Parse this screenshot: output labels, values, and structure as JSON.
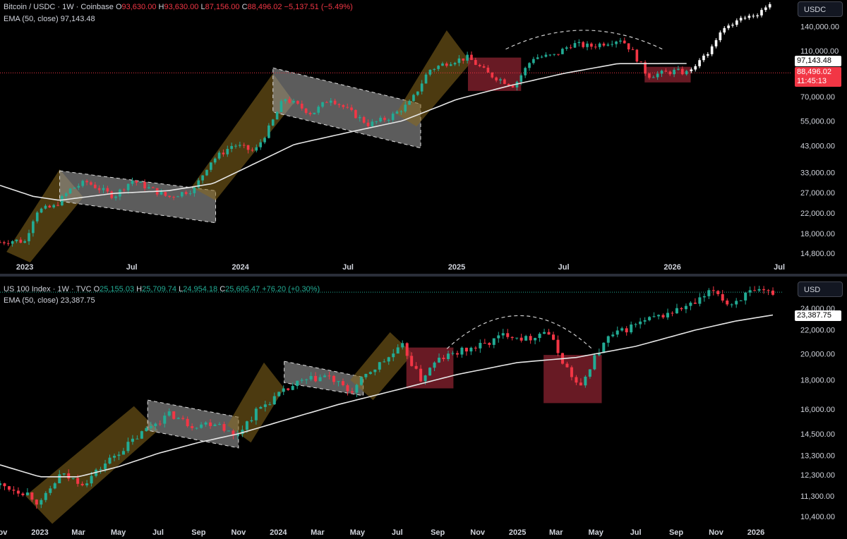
{
  "colors": {
    "up": "#22ab94",
    "down": "#f23645",
    "ema": "#e6e6e6",
    "projection": "#ffffff",
    "channel_up": "#8a6a1e",
    "channel_down": "#9a9a9a",
    "box": "#8b2330"
  },
  "top_pane": {
    "legend": {
      "symbol": "Bitcoin / USDC · 1W · Coinbase",
      "o_label": "O",
      "o_value": "93,630.00",
      "h_label": "H",
      "h_value": "93,630.00",
      "l_label": "L",
      "l_value": "87,156.00",
      "c_label": "C",
      "c_value": "88,496.02",
      "change": "−5,137.51 (−5.49%)",
      "ema": "EMA (50, close)",
      "ema_value": "97,143.48"
    },
    "currency": "USDC",
    "ema_tag": "97,143.48",
    "price_tag": "88,496.02",
    "countdown": "11:45:13"
  },
  "bottom_pane": {
    "legend": {
      "symbol": "US 100 Index · 1W · TVC",
      "o_label": "O",
      "o_value": "25,155.03",
      "h_label": "H",
      "h_value": "25,709.74",
      "l_label": "L",
      "l_value": "24,954.18",
      "c_label": "C",
      "c_value": "25,605.47",
      "change": "+76.20 (+0.30%)",
      "ema": "EMA (50, close)",
      "ema_value": "23,387.75"
    },
    "currency": "USD",
    "ema_tag": "23,387.75"
  },
  "chart_data": [
    {
      "type": "candlestick",
      "title": "Bitcoin / USDC · 1W · Coinbase",
      "y_scale": "log",
      "ylim": [
        13500,
        170000
      ],
      "y_ticks": [
        "140,000.00",
        "110,000.00",
        "70,000.00",
        "55,000.00",
        "43,000.00",
        "33,000.00",
        "27,000.00",
        "22,000.00",
        "18,000.00",
        "14,800.00"
      ],
      "x_range": [
        "2022-11-20",
        "2026-07-20"
      ],
      "x_ticks": [
        {
          "label": "2023",
          "date": "2023-01-01"
        },
        {
          "label": "Jul",
          "date": "2023-07-01"
        },
        {
          "label": "2024",
          "date": "2024-01-01"
        },
        {
          "label": "Jul",
          "date": "2024-07-01"
        },
        {
          "label": "2025",
          "date": "2025-01-01"
        },
        {
          "label": "Jul",
          "date": "2025-07-01"
        },
        {
          "label": "2026",
          "date": "2026-01-01"
        },
        {
          "label": "Jul",
          "date": "2026-07-01"
        }
      ],
      "series": [
        {
          "kind": "close_path",
          "anchors": [
            [
              "2022-11-20",
              16500
            ],
            [
              "2022-12-15",
              16800
            ],
            [
              "2023-01-01",
              16600
            ],
            [
              "2023-01-20",
              22500
            ],
            [
              "2023-02-20",
              23500
            ],
            [
              "2023-03-20",
              28000
            ],
            [
              "2023-04-15",
              30000
            ],
            [
              "2023-06-01",
              26000
            ],
            [
              "2023-07-01",
              30500
            ],
            [
              "2023-09-01",
              25800
            ],
            [
              "2023-10-15",
              28000
            ],
            [
              "2023-11-10",
              36500
            ],
            [
              "2023-12-20",
              43500
            ],
            [
              "2024-01-25",
              40500
            ],
            [
              "2024-02-20",
              52000
            ],
            [
              "2024-03-15",
              69000
            ],
            [
              "2024-05-01",
              59000
            ],
            [
              "2024-06-01",
              69000
            ],
            [
              "2024-08-05",
              53000
            ],
            [
              "2024-09-10",
              57000
            ],
            [
              "2024-10-15",
              66000
            ],
            [
              "2024-11-15",
              91000
            ],
            [
              "2024-12-20",
              99000
            ],
            [
              "2025-01-20",
              103000
            ],
            [
              "2025-02-25",
              87000
            ],
            [
              "2025-04-08",
              78000
            ],
            [
              "2025-05-10",
              103000
            ],
            [
              "2025-06-15",
              105000
            ],
            [
              "2025-07-15",
              118000
            ],
            [
              "2025-08-15",
              115000
            ],
            [
              "2025-10-06",
              124000
            ],
            [
              "2025-10-25",
              110000
            ],
            [
              "2025-11-20",
              86000
            ],
            [
              "2026-01-05",
              90000
            ],
            [
              "2026-01-26",
              88496
            ]
          ]
        },
        {
          "kind": "projection",
          "anchors": [
            [
              "2026-01-26",
              90000
            ],
            [
              "2026-02-20",
              100000
            ],
            [
              "2026-03-20",
              128000
            ],
            [
              "2026-04-20",
              150000
            ],
            [
              "2026-05-20",
              155000
            ],
            [
              "2026-06-15",
              172000
            ]
          ]
        },
        {
          "kind": "ema",
          "name": "EMA (50, close)",
          "anchors": [
            [
              "2022-11-20",
              29000
            ],
            [
              "2023-01-15",
              26000
            ],
            [
              "2023-03-01",
              25000
            ],
            [
              "2023-06-01",
              26800
            ],
            [
              "2023-09-01",
              27500
            ],
            [
              "2023-11-15",
              29500
            ],
            [
              "2024-01-15",
              35000
            ],
            [
              "2024-04-01",
              43500
            ],
            [
              "2024-07-01",
              49000
            ],
            [
              "2024-10-01",
              55000
            ],
            [
              "2025-01-01",
              68000
            ],
            [
              "2025-04-01",
              78000
            ],
            [
              "2025-07-01",
              88000
            ],
            [
              "2025-10-01",
              97000
            ],
            [
              "2025-12-01",
              97000
            ],
            [
              "2026-01-26",
              97143
            ]
          ]
        }
      ]
    },
    {
      "type": "candlestick",
      "title": "US 100 Index · 1W · TVC",
      "y_scale": "log",
      "ylim": [
        10000,
        26500
      ],
      "y_ticks": [
        "24,000.00",
        "22,000.00",
        "20,000.00",
        "18,000.00",
        "16,000.00",
        "14,500.00",
        "13,300.00",
        "12,300.00",
        "11,300.00",
        "10,400.00"
      ],
      "x_range": [
        "2022-11-01",
        "2026-02-10"
      ],
      "x_ticks": [
        {
          "label": "Nov",
          "date": "2022-11-01"
        },
        {
          "label": "2023",
          "date": "2023-01-01"
        },
        {
          "label": "Mar",
          "date": "2023-03-01"
        },
        {
          "label": "May",
          "date": "2023-05-01"
        },
        {
          "label": "Jul",
          "date": "2023-07-01"
        },
        {
          "label": "Sep",
          "date": "2023-09-01"
        },
        {
          "label": "Nov",
          "date": "2023-11-01"
        },
        {
          "label": "2024",
          "date": "2024-01-01"
        },
        {
          "label": "Mar",
          "date": "2024-03-01"
        },
        {
          "label": "May",
          "date": "2024-05-01"
        },
        {
          "label": "Jul",
          "date": "2024-07-01"
        },
        {
          "label": "Sep",
          "date": "2024-09-01"
        },
        {
          "label": "Nov",
          "date": "2024-11-01"
        },
        {
          "label": "2025",
          "date": "2025-01-01"
        },
        {
          "label": "Mar",
          "date": "2025-03-01"
        },
        {
          "label": "May",
          "date": "2025-05-01"
        },
        {
          "label": "Jul",
          "date": "2025-07-01"
        },
        {
          "label": "Sep",
          "date": "2025-09-01"
        },
        {
          "label": "Nov",
          "date": "2025-11-01"
        },
        {
          "label": "2026",
          "date": "2026-01-01"
        }
      ],
      "series": [
        {
          "kind": "close_path",
          "anchors": [
            [
              "2022-11-01",
              11800
            ],
            [
              "2022-12-15",
              11400
            ],
            [
              "2023-01-01",
              10900
            ],
            [
              "2023-02-01",
              12300
            ],
            [
              "2023-03-10",
              11900
            ],
            [
              "2023-04-15",
              13000
            ],
            [
              "2023-05-20",
              14000
            ],
            [
              "2023-06-20",
              15000
            ],
            [
              "2023-07-20",
              15700
            ],
            [
              "2023-08-20",
              15000
            ],
            [
              "2023-10-01",
              15200
            ],
            [
              "2023-10-25",
              14300
            ],
            [
              "2023-12-01",
              16000
            ],
            [
              "2023-12-31",
              16900
            ],
            [
              "2024-02-01",
              17800
            ],
            [
              "2024-03-15",
              18300
            ],
            [
              "2024-04-20",
              17100
            ],
            [
              "2024-05-20",
              18600
            ],
            [
              "2024-07-10",
              20600
            ],
            [
              "2024-08-05",
              18000
            ],
            [
              "2024-09-01",
              19500
            ],
            [
              "2024-10-01",
              20100
            ],
            [
              "2024-11-15",
              20800
            ],
            [
              "2024-12-15",
              21700
            ],
            [
              "2025-01-15",
              21200
            ],
            [
              "2025-02-15",
              22000
            ],
            [
              "2025-03-10",
              19500
            ],
            [
              "2025-04-07",
              17300
            ],
            [
              "2025-04-25",
              19400
            ],
            [
              "2025-05-20",
              21300
            ],
            [
              "2025-07-01",
              22500
            ],
            [
              "2025-08-15",
              23400
            ],
            [
              "2025-10-01",
              24500
            ],
            [
              "2025-10-30",
              25900
            ],
            [
              "2025-11-20",
              24300
            ],
            [
              "2025-12-20",
              25500
            ],
            [
              "2026-01-30",
              25605
            ]
          ]
        },
        {
          "kind": "ema",
          "name": "EMA (50, close)",
          "anchors": [
            [
              "2022-11-01",
              12800
            ],
            [
              "2023-01-01",
              12200
            ],
            [
              "2023-03-01",
              12200
            ],
            [
              "2023-05-01",
              12700
            ],
            [
              "2023-07-01",
              13400
            ],
            [
              "2023-09-01",
              14000
            ],
            [
              "2023-11-01",
              14500
            ],
            [
              "2024-01-01",
              15200
            ],
            [
              "2024-04-01",
              16300
            ],
            [
              "2024-07-01",
              17300
            ],
            [
              "2024-10-01",
              18400
            ],
            [
              "2025-01-01",
              19300
            ],
            [
              "2025-04-01",
              19700
            ],
            [
              "2025-07-01",
              20600
            ],
            [
              "2025-10-01",
              22000
            ],
            [
              "2025-12-01",
              22800
            ],
            [
              "2026-01-30",
              23388
            ]
          ]
        }
      ]
    }
  ]
}
